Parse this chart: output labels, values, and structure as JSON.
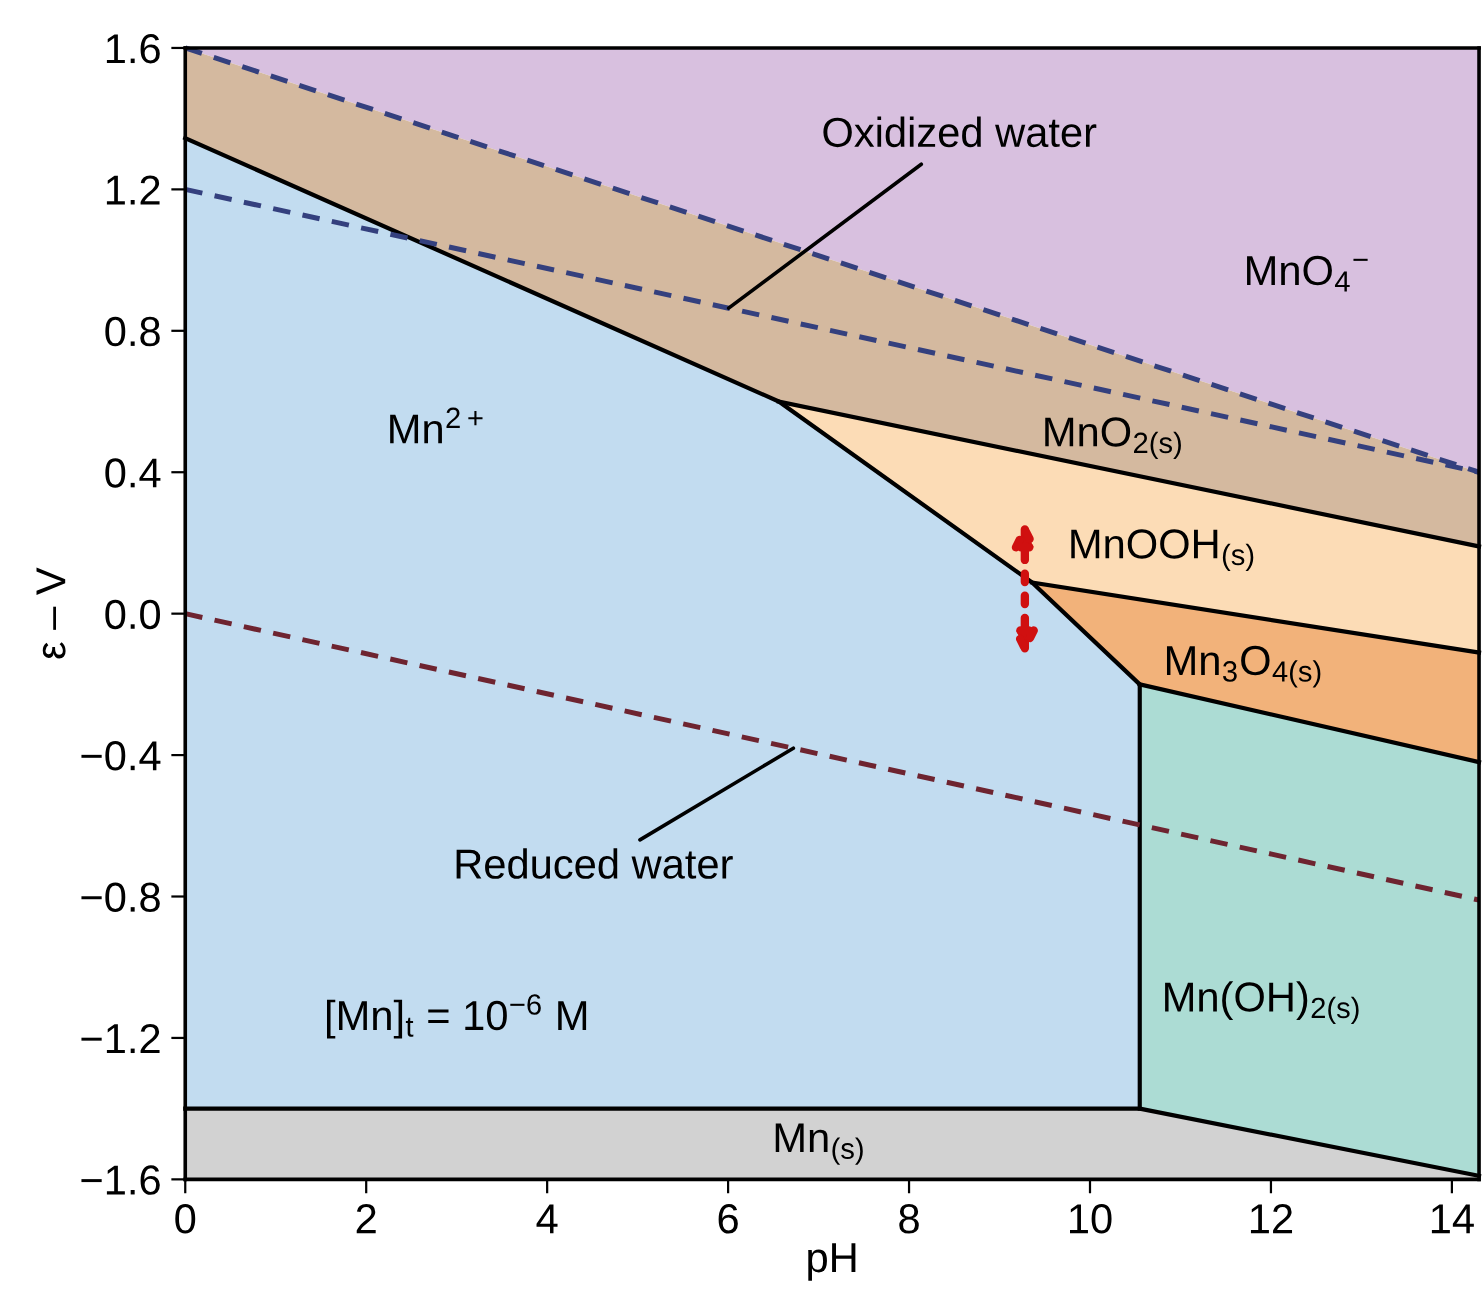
{
  "chart_data": {
    "type": "line",
    "xlabel": "pH",
    "ylabel": "ε – V",
    "xlim": [
      0,
      14.3
    ],
    "ylim": [
      -1.6,
      1.6
    ],
    "xticks": [
      0,
      2,
      4,
      6,
      8,
      10,
      12,
      14
    ],
    "yticks": [
      {
        "value": -1.6,
        "label": "−1.6"
      },
      {
        "value": -1.2,
        "label": "−1.2"
      },
      {
        "value": -0.8,
        "label": "−0.8"
      },
      {
        "value": -0.4,
        "label": "−0.4"
      },
      {
        "value": 0.0,
        "label": "0.0"
      },
      0.4,
      0.8,
      1.2,
      1.6
    ],
    "grid": false,
    "legend": false,
    "marker": "none",
    "series": [
      {
        "color": "#000000",
        "line_style": "solid",
        "x": [
          0,
          6.56,
          9.36,
          10.55,
          10.55
        ],
        "values": [
          1.345,
          0.6,
          0.088,
          -0.2,
          -1.4
        ]
      },
      {
        "color": "#000000",
        "line_style": "solid",
        "x": [
          6.56,
          14.3
        ],
        "values": [
          0.6,
          0.19
        ]
      },
      {
        "color": "#000000",
        "line_style": "solid",
        "x": [
          9.36,
          14.3
        ],
        "values": [
          0.088,
          -0.11
        ]
      },
      {
        "color": "#000000",
        "line_style": "solid",
        "x": [
          10.55,
          14.3
        ],
        "values": [
          -0.2,
          -0.42
        ]
      },
      {
        "color": "#000000",
        "line_style": "solid",
        "x": [
          0,
          10.55,
          14.3
        ],
        "values": [
          -1.4,
          -1.4,
          -1.59
        ]
      },
      {
        "color": "#34407e",
        "line_style": "dashed",
        "x": [
          0,
          14.3
        ],
        "values": [
          1.6,
          0.4
        ]
      },
      {
        "color": "#34407e",
        "line_style": "dashed",
        "name": "Oxidized water",
        "x": [
          0,
          14.3
        ],
        "values": [
          1.2,
          0.4
        ]
      },
      {
        "color": "#6e2430",
        "line_style": "dashed",
        "name": "Reduced water",
        "x": [
          0,
          14.3
        ],
        "values": [
          0.0,
          -0.81
        ]
      }
    ],
    "annotations": [
      "Mn$^{2+}$",
      "MnO$_{4}$$^{−}$",
      "MnO$_{2(s)}$",
      "MnOOH$_{(s)}$",
      "Mn$_{3}$O$_{4(s)}$",
      "Mn(OH)$_{2(s)}$",
      "Mn$_{(s)}$",
      "[Mn]$_{t}$ = 10$^{−6}$ M"
    ]
  }
}
